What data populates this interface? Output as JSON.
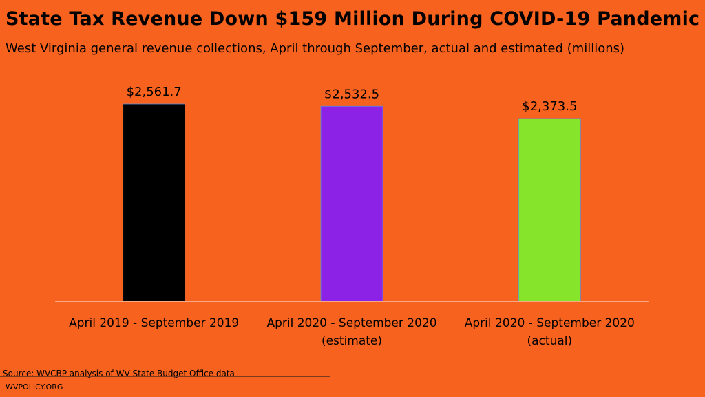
{
  "header": {
    "title": "State Tax Revenue Down $159 Million During COVID-19 Pandemic",
    "subtitle": "West Virginia general revenue collections, April through September, actual and estimated (millions)"
  },
  "footer": {
    "source": "Source: WVCBP analysis of WV State Budget Office data",
    "site": "WVPOLICY.ORG"
  },
  "colors": {
    "background": "#f7621e",
    "bar_2019": "#000000",
    "bar_2020_estimate": "#8b22e6",
    "bar_2020_actual": "#86e42a",
    "axis": "#f5c2a8"
  },
  "chart_data": {
    "type": "bar",
    "categories": [
      [
        "April 2019 - September 2019"
      ],
      [
        "April 2020 - September 2020",
        "(estimate)"
      ],
      [
        "April 2020 - September 2020",
        "(actual)"
      ]
    ],
    "values": [
      2561.7,
      2532.5,
      2373.5
    ],
    "data_labels": [
      "$2,561.7",
      "$2,532.5",
      "$2,373.5"
    ],
    "bar_colors": [
      "#000000",
      "#8b22e6",
      "#86e42a"
    ],
    "ylim": [
      0,
      2561.7
    ],
    "grid": false,
    "legend": "none"
  }
}
